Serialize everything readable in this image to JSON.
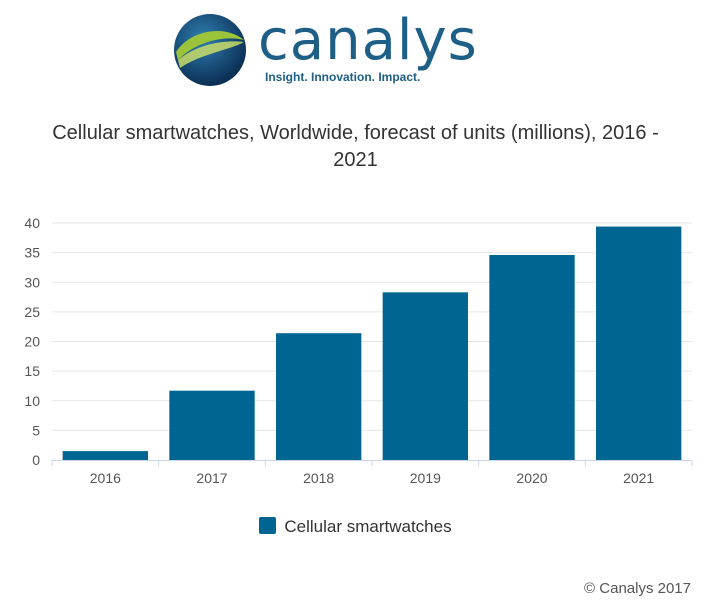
{
  "logo": {
    "name": "canalys",
    "tagline": "Insight. Innovation. Impact."
  },
  "colors": {
    "bar": "#006691",
    "brand": "#1d5f86",
    "grid": "#e6e6e6",
    "text": "#333333"
  },
  "chart_data": {
    "type": "bar",
    "title": "Cellular smartwatches, Worldwide, forecast of units (millions), 2016 - 2021",
    "title_line1": "Cellular smartwatches, Worldwide, forecast of units (millions), 2016 -",
    "title_line2": "2021",
    "categories": [
      "2016",
      "2017",
      "2018",
      "2019",
      "2020",
      "2021"
    ],
    "series": [
      {
        "name": "Cellular smartwatches",
        "values": [
          1.5,
          11.7,
          21.4,
          28.3,
          34.6,
          39.4
        ]
      }
    ],
    "ylim": [
      0,
      40
    ],
    "yticks": [
      0,
      5,
      10,
      15,
      20,
      25,
      30,
      35,
      40
    ],
    "xlabel": "",
    "ylabel": "",
    "grid": true,
    "legend": "bottom-center"
  },
  "copyright": "© Canalys 2017"
}
